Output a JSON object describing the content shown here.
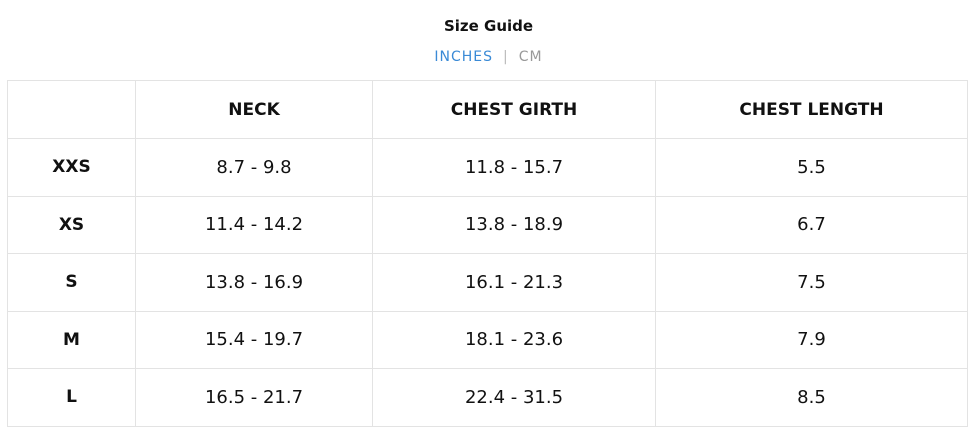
{
  "header": {
    "title": "Size Guide"
  },
  "tabs": {
    "items": [
      "INCHES",
      "CM"
    ],
    "separator": "|"
  },
  "table": {
    "columns": [
      "",
      "NECK",
      "CHEST GIRTH",
      "CHEST LENGTH"
    ],
    "rows": [
      [
        "XXS",
        "8.7 - 9.8",
        "11.8 - 15.7",
        "5.5"
      ],
      [
        "XS",
        "11.4 - 14.2",
        "13.8 - 18.9",
        "6.7"
      ],
      [
        "S",
        "13.8 - 16.9",
        "16.1 - 21.3",
        "7.5"
      ],
      [
        "M",
        "15.4 - 19.7",
        "18.1 - 23.6",
        "7.9"
      ],
      [
        "L",
        "16.5 - 21.7",
        "22.4 - 31.5",
        "8.5"
      ]
    ]
  }
}
